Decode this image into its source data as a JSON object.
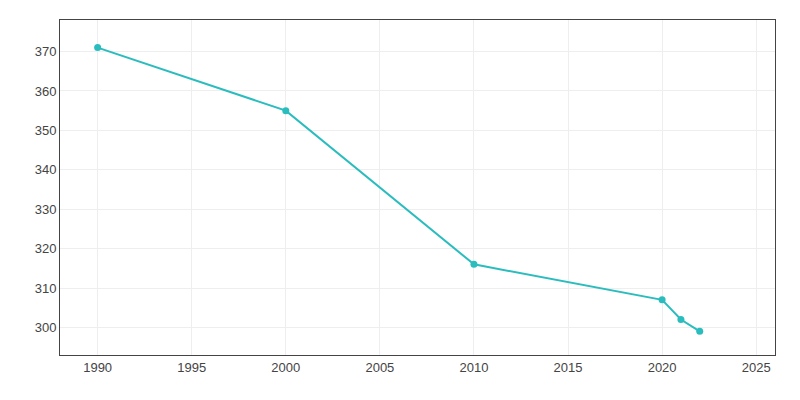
{
  "chart_data": {
    "type": "line",
    "x": [
      1990,
      2000,
      2010,
      2020,
      2021,
      2022
    ],
    "values": [
      371,
      355,
      316,
      307,
      302,
      299
    ],
    "color": "#2bbcbe",
    "marker": "circle",
    "xlim": [
      1988,
      2026
    ],
    "ylim": [
      293,
      378
    ],
    "xticks": [
      1990,
      1995,
      2000,
      2005,
      2010,
      2015,
      2020,
      2025
    ],
    "yticks": [
      300,
      310,
      320,
      330,
      340,
      350,
      360,
      370
    ],
    "grid": true
  }
}
